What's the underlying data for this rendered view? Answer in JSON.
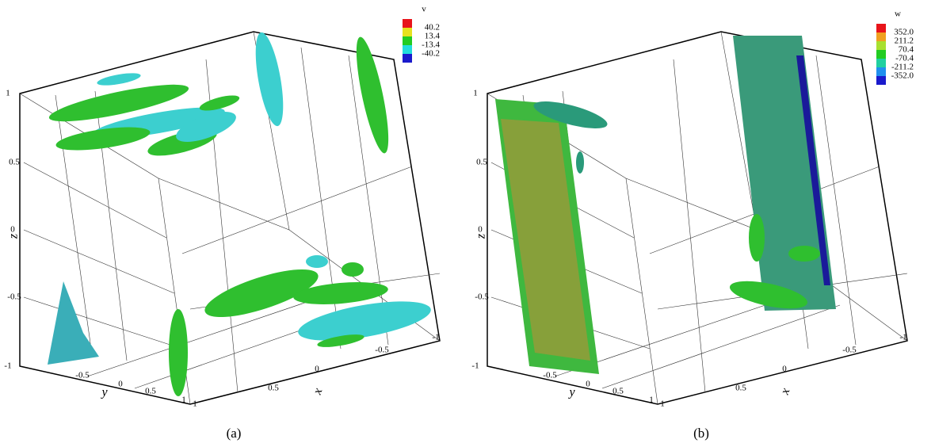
{
  "panels": [
    {
      "caption": "(a)",
      "legend": {
        "title": "v",
        "labels": [
          "40.2",
          "13.4",
          "-13.4",
          "-40.2"
        ],
        "colors": [
          "#e8141a",
          "#e6e21e",
          "#22cc22",
          "#22dddd",
          "#1a1acc"
        ]
      },
      "axes": {
        "z_label": "z",
        "z_ticks": [
          "1",
          "0.5",
          "0",
          "-0.5",
          "-1"
        ],
        "y_label": "y",
        "y_ticks": [
          "-0.5",
          "0",
          "0.5",
          "1"
        ],
        "x_label": "x",
        "x_ticks": [
          "1",
          "0.5",
          "0",
          "-0.5",
          "-1"
        ]
      }
    },
    {
      "caption": "(b)",
      "legend": {
        "title": "w",
        "labels": [
          "352.0",
          "211.2",
          "70.4",
          "-70.4",
          "-211.2",
          "-352.0"
        ],
        "colors": [
          "#e8141a",
          "#f0a020",
          "#a8e030",
          "#22cc22",
          "#20d0a0",
          "#2090ee",
          "#1a1acc"
        ]
      },
      "axes": {
        "z_label": "z",
        "z_ticks": [
          "1",
          "0.5",
          "0",
          "-0.5",
          "-1"
        ],
        "y_label": "y",
        "y_ticks": [
          "-0.5",
          "0",
          "0.5",
          "1"
        ],
        "x_label": "x",
        "x_ticks": [
          "1",
          "0.5",
          "0",
          "-0.5",
          "-1"
        ]
      }
    }
  ]
}
